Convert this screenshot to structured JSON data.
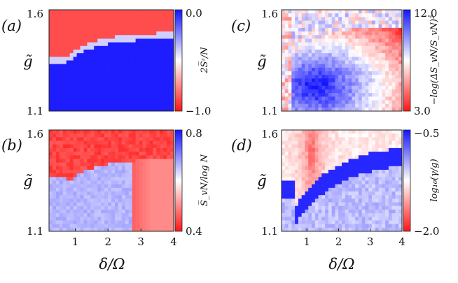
{
  "chart_data": [
    {
      "type": "heatmap",
      "panel_label": "(a)",
      "xlabel": "",
      "ylabel": "g̃",
      "x_ticks": [],
      "y_ticks": [
        "1.6",
        "1.1"
      ],
      "xlim": [
        0.2,
        4.0
      ],
      "ylim": [
        1.1,
        1.6
      ],
      "colorbar": {
        "label": "2S̅ᶻ/N",
        "max_label": "0.0",
        "min_label": "−1.0",
        "range": [
          -1.0,
          0.0
        ]
      },
      "colors": {
        "high": "#1414ff",
        "mid": "#ffffff",
        "low": "#ff1414"
      }
    },
    {
      "type": "heatmap",
      "panel_label": "(c)",
      "xlabel": "",
      "ylabel": "g̃",
      "x_ticks": [],
      "y_ticks": [
        "1.6",
        "1.1"
      ],
      "xlim": [
        0.2,
        4.0
      ],
      "ylim": [
        1.1,
        1.6
      ],
      "colorbar": {
        "label": "−log(ΔS_vN/S_vN)²",
        "max_label": "12.0",
        "min_label": "3.0",
        "range": [
          3.0,
          12.0
        ]
      },
      "colors": {
        "high": "#1414ff",
        "mid": "#ffffff",
        "low": "#ff1414"
      }
    },
    {
      "type": "heatmap",
      "panel_label": "(b)",
      "xlabel": "δ/Ω",
      "ylabel": "g̃",
      "x_ticks": [
        "1",
        "2",
        "3",
        "4"
      ],
      "y_ticks": [
        "1.6",
        "1.1"
      ],
      "xlim": [
        0.2,
        4.0
      ],
      "ylim": [
        1.1,
        1.6
      ],
      "colorbar": {
        "label": "S̅_vN/log N",
        "max_label": "0.8",
        "min_label": "0.4",
        "range": [
          0.4,
          0.8
        ]
      },
      "colors": {
        "high": "#1414ff",
        "mid": "#ffffff",
        "low": "#ff1414"
      }
    },
    {
      "type": "heatmap",
      "panel_label": "(d)",
      "xlabel": "δ/Ω",
      "ylabel": "g̃",
      "x_ticks": [
        "1",
        "2",
        "3",
        "4"
      ],
      "y_ticks": [
        "1.6",
        "1.1"
      ],
      "xlim": [
        0.2,
        4.0
      ],
      "ylim": [
        1.1,
        1.6
      ],
      "colorbar": {
        "label": "log₁₀(γ/g)",
        "max_label": "−0.5",
        "min_label": "−2.0",
        "range": [
          -2.0,
          -0.5
        ]
      },
      "colors": {
        "high": "#1414ff",
        "mid": "#ffffff",
        "low": "#ff1414"
      }
    }
  ]
}
